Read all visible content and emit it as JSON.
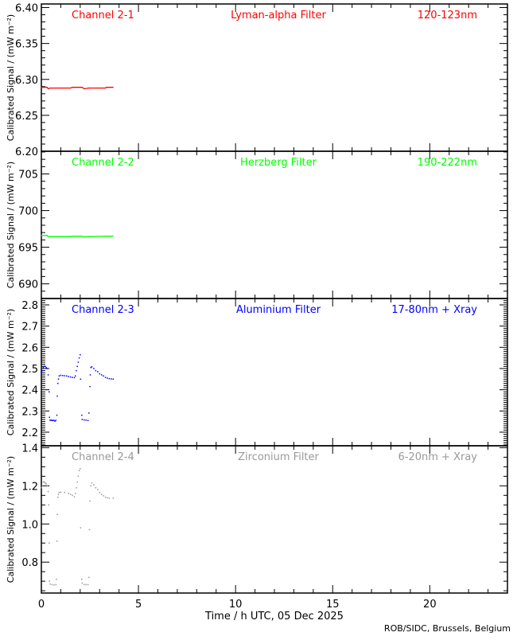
{
  "xaxis": {
    "label": "Time / h UTC, 05 Dec 2025",
    "xlim": [
      0,
      24
    ],
    "major_ticks": [
      0,
      5,
      10,
      15,
      20
    ],
    "minor_step": 1
  },
  "credit": "ROB/SIDC, Brussels, Belgium",
  "chart_data": [
    {
      "type": "line",
      "channel": "Channel 2-1",
      "filter": "Lyman-alpha Filter",
      "band": "120-123nm",
      "color": "#ff0000",
      "ylabel": "Calibrated Signal / (mW m⁻²)",
      "ylim": [
        6.2,
        6.405
      ],
      "yticks": [
        "6.20",
        "6.25",
        "6.30",
        "6.35",
        "6.40"
      ],
      "minor_step": 0.01,
      "points": [
        [
          0,
          6.289
        ],
        [
          0.3,
          6.289
        ],
        [
          0.35,
          6.287
        ],
        [
          0.45,
          6.288
        ],
        [
          1.0,
          6.288
        ],
        [
          1.5,
          6.288
        ],
        [
          1.6,
          6.289
        ],
        [
          2.1,
          6.289
        ],
        [
          2.2,
          6.287
        ],
        [
          2.45,
          6.288
        ],
        [
          3.0,
          6.288
        ],
        [
          3.3,
          6.288
        ],
        [
          3.35,
          6.289
        ],
        [
          3.7,
          6.289
        ]
      ]
    },
    {
      "type": "line",
      "channel": "Channel 2-2",
      "filter": "Herzberg Filter",
      "band": "190-222nm",
      "color": "#00ff00",
      "ylabel": "Calibrated Signal / (mW m⁻²)",
      "ylim": [
        688.0,
        708.1
      ],
      "yticks": [
        "690",
        "695",
        "700",
        "705"
      ],
      "minor_step": 1,
      "points": [
        [
          0,
          696.6
        ],
        [
          0.3,
          696.6
        ],
        [
          0.35,
          696.45
        ],
        [
          1.5,
          696.45
        ],
        [
          1.6,
          696.5
        ],
        [
          2.1,
          696.5
        ],
        [
          2.2,
          696.4
        ],
        [
          2.45,
          696.45
        ],
        [
          3.3,
          696.5
        ],
        [
          3.7,
          696.5
        ]
      ]
    },
    {
      "type": "scatter",
      "channel": "Channel 2-3",
      "filter": "Aluminium Filter",
      "band": "17-80nm + Xray",
      "color": "#0000ff",
      "ylabel": "Calibrated Signal / (mW m⁻²)",
      "ylim": [
        2.136,
        2.83
      ],
      "yticks": [
        "2.2",
        "2.3",
        "2.4",
        "2.5",
        "2.6",
        "2.7",
        "2.8"
      ],
      "minor_step": 0.01,
      "points": [
        [
          0.0,
          2.48
        ],
        [
          0.05,
          2.49
        ],
        [
          0.1,
          2.505
        ],
        [
          0.15,
          2.51
        ],
        [
          0.2,
          2.51
        ],
        [
          0.25,
          2.505
        ],
        [
          0.3,
          2.5
        ],
        [
          0.35,
          2.47
        ],
        [
          0.4,
          2.39
        ],
        [
          0.42,
          2.27
        ],
        [
          0.45,
          2.257
        ],
        [
          0.5,
          2.256
        ],
        [
          0.55,
          2.256
        ],
        [
          0.6,
          2.255
        ],
        [
          0.65,
          2.256
        ],
        [
          0.7,
          2.252
        ],
        [
          0.75,
          2.256
        ],
        [
          0.8,
          2.28
        ],
        [
          0.82,
          2.37
        ],
        [
          0.85,
          2.43
        ],
        [
          0.88,
          2.45
        ],
        [
          0.92,
          2.465
        ],
        [
          1.0,
          2.468
        ],
        [
          1.1,
          2.467
        ],
        [
          1.2,
          2.466
        ],
        [
          1.3,
          2.465
        ],
        [
          1.4,
          2.462
        ],
        [
          1.5,
          2.46
        ],
        [
          1.6,
          2.458
        ],
        [
          1.7,
          2.457
        ],
        [
          1.75,
          2.465
        ],
        [
          1.8,
          2.49
        ],
        [
          1.85,
          2.51
        ],
        [
          1.9,
          2.53
        ],
        [
          1.95,
          2.55
        ],
        [
          2.0,
          2.565
        ],
        [
          2.02,
          2.45
        ],
        [
          2.08,
          2.28
        ],
        [
          2.1,
          2.26
        ],
        [
          2.2,
          2.258
        ],
        [
          2.3,
          2.257
        ],
        [
          2.4,
          2.255
        ],
        [
          2.45,
          2.29
        ],
        [
          2.5,
          2.415
        ],
        [
          2.52,
          2.47
        ],
        [
          2.55,
          2.505
        ],
        [
          2.6,
          2.508
        ],
        [
          2.7,
          2.5
        ],
        [
          2.8,
          2.49
        ],
        [
          2.9,
          2.485
        ],
        [
          3.0,
          2.475
        ],
        [
          3.1,
          2.47
        ],
        [
          3.2,
          2.465
        ],
        [
          3.3,
          2.458
        ],
        [
          3.4,
          2.455
        ],
        [
          3.5,
          2.452
        ],
        [
          3.6,
          2.451
        ],
        [
          3.7,
          2.45
        ]
      ]
    },
    {
      "type": "scatter",
      "channel": "Channel 2-4",
      "filter": "Zirconium Filter",
      "band": "6-20nm + Xray",
      "color": "#999999",
      "ylabel": "Calibrated Signal / (mW m⁻²)",
      "ylim": [
        0.638,
        1.41
      ],
      "yticks": [
        "0.8",
        "1.0",
        "1.2",
        "1.4"
      ],
      "minor_step": 0.05,
      "points": [
        [
          0.0,
          1.19
        ],
        [
          0.05,
          1.2
        ],
        [
          0.1,
          1.22
        ],
        [
          0.15,
          1.22
        ],
        [
          0.2,
          1.215
        ],
        [
          0.25,
          1.21
        ],
        [
          0.3,
          1.2
        ],
        [
          0.35,
          1.17
        ],
        [
          0.38,
          1.1
        ],
        [
          0.4,
          0.9
        ],
        [
          0.42,
          0.7
        ],
        [
          0.45,
          0.685
        ],
        [
          0.55,
          0.682
        ],
        [
          0.65,
          0.68
        ],
        [
          0.75,
          0.682
        ],
        [
          0.78,
          0.71
        ],
        [
          0.8,
          0.91
        ],
        [
          0.82,
          1.05
        ],
        [
          0.85,
          1.14
        ],
        [
          0.88,
          1.155
        ],
        [
          0.92,
          1.165
        ],
        [
          1.0,
          1.167
        ],
        [
          1.2,
          1.165
        ],
        [
          1.4,
          1.16
        ],
        [
          1.5,
          1.155
        ],
        [
          1.6,
          1.15
        ],
        [
          1.7,
          1.143
        ],
        [
          1.75,
          1.16
        ],
        [
          1.8,
          1.19
        ],
        [
          1.85,
          1.22
        ],
        [
          1.9,
          1.25
        ],
        [
          1.95,
          1.28
        ],
        [
          2.0,
          1.29
        ],
        [
          2.02,
          0.98
        ],
        [
          2.08,
          0.71
        ],
        [
          2.1,
          0.69
        ],
        [
          2.2,
          0.683
        ],
        [
          2.3,
          0.682
        ],
        [
          2.4,
          0.682
        ],
        [
          2.45,
          0.72
        ],
        [
          2.48,
          0.97
        ],
        [
          2.5,
          1.12
        ],
        [
          2.55,
          1.2
        ],
        [
          2.6,
          1.215
        ],
        [
          2.7,
          1.205
        ],
        [
          2.8,
          1.19
        ],
        [
          2.9,
          1.18
        ],
        [
          3.0,
          1.165
        ],
        [
          3.1,
          1.155
        ],
        [
          3.2,
          1.148
        ],
        [
          3.3,
          1.14
        ],
        [
          3.4,
          1.137
        ],
        [
          3.5,
          1.135
        ],
        [
          3.7,
          1.135
        ]
      ]
    }
  ]
}
